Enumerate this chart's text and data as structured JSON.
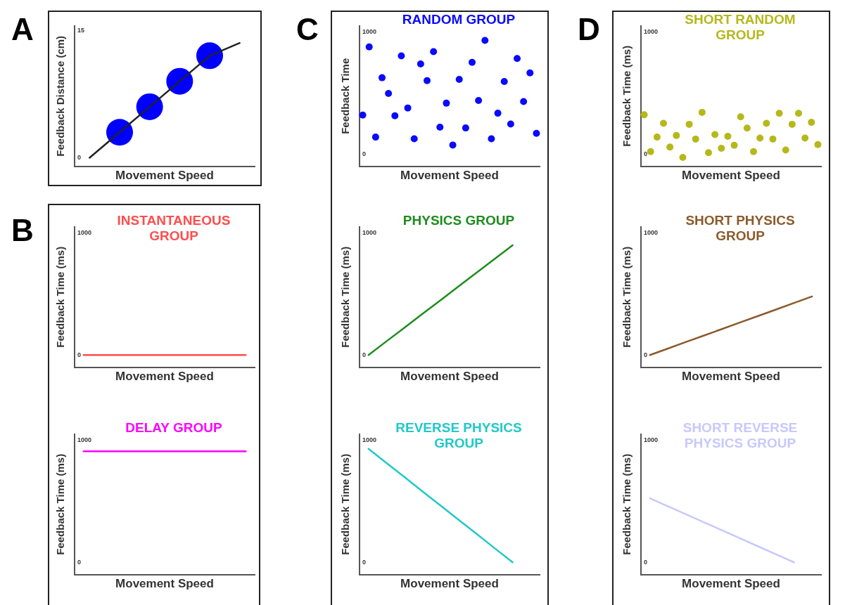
{
  "chart_data": [
    {
      "type": "line",
      "annotations": [
        "A"
      ],
      "xlabel": "Movement Speed",
      "ylabel": "Feedback Distance (cm)",
      "categories": [
        null,
        null,
        null,
        null,
        null,
        null
      ],
      "tick_labels": "y",
      "ylim": [
        -1,
        15.5
      ],
      "yticks": [
        0,
        15
      ],
      "series": [
        {
          "color": "#222222",
          "marker": "none",
          "values": [
            0,
            3,
            6,
            9,
            12,
            13.5
          ]
        },
        {
          "type": "bubble",
          "color": "#0000ff",
          "values": [
            null,
            3,
            6,
            9,
            12,
            null
          ],
          "sizes": [
            null,
            1,
            1,
            1,
            1,
            null
          ]
        }
      ]
    },
    {
      "type": "line",
      "annotations": [
        "B"
      ],
      "title": "INSTANTANEOUS GROUP",
      "xlabel": "Movement Speed",
      "ylabel": "Feedback Time (ms)",
      "categories": [
        null,
        null,
        null,
        null,
        null,
        null,
        null,
        null,
        null,
        null
      ],
      "tick_labels": "y",
      "ylim": [
        -100,
        1050
      ],
      "yticks": [
        0,
        1000
      ],
      "marker": "none",
      "series": [
        {
          "color": "#ff4d4d",
          "values": [
            0,
            0,
            0,
            0,
            0,
            0,
            0,
            0,
            0,
            0
          ]
        }
      ]
    },
    {
      "type": "line",
      "title": "DELAY GROUP",
      "xlabel": "Movement Speed",
      "ylabel": "Feedback Time (ms)",
      "categories": [
        null,
        null,
        null,
        null,
        null,
        null,
        null,
        null,
        null,
        null
      ],
      "tick_labels": "y",
      "ylim": [
        -100,
        1050
      ],
      "yticks": [
        0,
        1000
      ],
      "marker": "none",
      "series": [
        {
          "color": "#ff00ff",
          "values": [
            910,
            910,
            910,
            910,
            910,
            910,
            910,
            910,
            910,
            910
          ]
        }
      ]
    },
    {
      "type": "scatter",
      "annotations": [
        "C"
      ],
      "title": "RANDOM GROUP",
      "xlabel": "Movement Speed",
      "ylabel": "Feedback Time",
      "categories": [
        null,
        null,
        null,
        null,
        null,
        null,
        null,
        null,
        null,
        null,
        null,
        null,
        null,
        null,
        null,
        null,
        null,
        null,
        null,
        null,
        null,
        null,
        null,
        null,
        null,
        null,
        null,
        null
      ],
      "tick_labels": "y",
      "ylim": [
        -100,
        1050
      ],
      "yticks": [
        0,
        1000
      ],
      "marker": "circle",
      "series": [
        {
          "color": "#0a0aff",
          "values": [
            320,
            879,
            139,
            626,
            497,
            314,
            805,
            378,
            125,
            739,
            602,
            840,
            220,
            417,
            74,
            612,
            214,
            752,
            439,
            932,
            125,
            335,
            595,
            246,
            784,
            431,
            665,
            170
          ]
        }
      ]
    },
    {
      "type": "line",
      "title": "PHYSICS GROUP",
      "xlabel": "Movement Speed",
      "ylabel": "Feedback Time (ms)",
      "categories": [
        null,
        null,
        null,
        null,
        null,
        null,
        null,
        null,
        null,
        null
      ],
      "tick_labels": "y",
      "ylim": [
        -100,
        1050
      ],
      "yticks": [
        0,
        1000
      ],
      "marker": "none",
      "series": [
        {
          "color": "#1e8c1e",
          "values": [
            0,
            113,
            225,
            338,
            450,
            563,
            675,
            788,
            900,
            null
          ]
        }
      ]
    },
    {
      "type": "line",
      "title": "REVERSE PHYSICS GROUP",
      "xlabel": "Movement Speed",
      "ylabel": "Feedback Time (ms)",
      "categories": [
        null,
        null,
        null,
        null,
        null,
        null,
        null,
        null,
        null,
        null
      ],
      "tick_labels": "y",
      "ylim": [
        -100,
        1050
      ],
      "yticks": [
        0,
        1000
      ],
      "marker": "none",
      "series": [
        {
          "color": "#22c8c8",
          "values": [
            930,
            814,
            698,
            581,
            465,
            349,
            233,
            116,
            0,
            null
          ]
        }
      ]
    },
    {
      "type": "scatter",
      "annotations": [
        "D"
      ],
      "title": "SHORT RANDOM GROUP",
      "xlabel": "Movement Speed",
      "ylabel": "Feedback Time (ms)",
      "categories": [
        null,
        null,
        null,
        null,
        null,
        null,
        null,
        null,
        null,
        null,
        null,
        null,
        null,
        null,
        null,
        null,
        null,
        null,
        null,
        null,
        null,
        null,
        null,
        null,
        null,
        null,
        null,
        null
      ],
      "tick_labels": "y",
      "ylim": [
        -100,
        1050
      ],
      "yticks": [
        0,
        1000
      ],
      "marker": "circle",
      "series": [
        {
          "color": "#b5b81a",
          "values": [
            322,
            20,
            139,
            252,
            57,
            152,
            -27,
            244,
            123,
            342,
            12,
            160,
            47,
            145,
            72,
            305,
            213,
            20,
            131,
            252,
            123,
            334,
            33,
            244,
            334,
            131,
            260,
            78
          ]
        }
      ]
    },
    {
      "type": "line",
      "title": "SHORT PHYSICS GROUP",
      "xlabel": "Movement Speed",
      "ylabel": "Feedback Time (ms)",
      "categories": [
        null,
        null,
        null,
        null,
        null,
        null,
        null,
        null,
        null,
        null
      ],
      "tick_labels": "y",
      "ylim": [
        -100,
        1050
      ],
      "yticks": [
        0,
        1000
      ],
      "marker": "none",
      "series": [
        {
          "color": "#8b5a2b",
          "values": [
            0,
            53,
            107,
            160,
            213,
            267,
            320,
            373,
            427,
            480
          ]
        }
      ]
    },
    {
      "type": "line",
      "title": "SHORT REVERSE PHYSICS GROUP",
      "xlabel": "Movement Speed",
      "ylabel": "Feedback Time (ms)",
      "categories": [
        null,
        null,
        null,
        null,
        null,
        null,
        null,
        null,
        null,
        null
      ],
      "tick_labels": "y",
      "ylim": [
        -100,
        1050
      ],
      "yticks": [
        0,
        1000
      ],
      "marker": "none",
      "series": [
        {
          "color": "#c8c8ff",
          "values": [
            525,
            459,
            394,
            328,
            263,
            197,
            131,
            66,
            0,
            null
          ]
        }
      ]
    }
  ]
}
